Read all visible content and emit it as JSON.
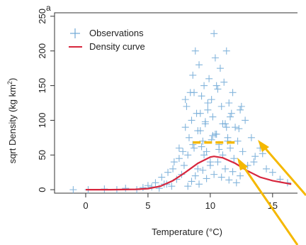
{
  "chart_data": {
    "type": "scatter",
    "panel_label": "a",
    "xlabel": "Temperature (°C)",
    "ylabel_main": "sqrt Density (kg km",
    "ylabel_sup": "2",
    "ylabel_close": ")",
    "xlim": [
      -2.5,
      17
    ],
    "ylim": [
      -5,
      255
    ],
    "xticks": [
      0,
      5,
      10,
      15
    ],
    "yticks": [
      0,
      50,
      100,
      150,
      200,
      250
    ],
    "legend": [
      {
        "label": "Observations",
        "marker": "plus",
        "color": "#6fa8d6"
      },
      {
        "label": "Density curve",
        "marker": "line",
        "color": "#d7263d"
      }
    ],
    "colors": {
      "observations": "#6fa8d6",
      "curve": "#d7263d",
      "annotation": "#f5b800"
    },
    "series": [
      {
        "name": "Density curve",
        "kind": "curve",
        "x": [
          0,
          2,
          4,
          5,
          6,
          7,
          8,
          9,
          10,
          10.3,
          11,
          12,
          13,
          14,
          15,
          16.5
        ],
        "y": [
          0,
          0,
          0.5,
          1.5,
          5,
          13,
          25,
          38,
          47,
          48,
          46,
          38,
          27,
          18,
          13,
          8
        ]
      },
      {
        "name": "Observations",
        "kind": "points",
        "x": [
          -1,
          0.2,
          1.5,
          2.5,
          3.2,
          4.1,
          4.6,
          5.0,
          5.3,
          5.6,
          5.9,
          6.1,
          6.3,
          6.6,
          6.9,
          7.1,
          7.3,
          7.5,
          7.7,
          7.9,
          8.0,
          8.1,
          8.2,
          8.3,
          8.4,
          8.5,
          8.6,
          8.7,
          8.8,
          8.9,
          9.0,
          9.1,
          9.2,
          9.3,
          9.4,
          9.5,
          9.6,
          9.7,
          9.8,
          9.9,
          10.0,
          10.1,
          10.2,
          10.3,
          10.4,
          10.5,
          10.6,
          10.7,
          10.8,
          10.9,
          11.0,
          11.1,
          11.2,
          11.3,
          11.4,
          11.5,
          11.6,
          11.7,
          11.8,
          11.9,
          12.0,
          12.2,
          12.4,
          12.6,
          12.8,
          13.0,
          13.3,
          13.6,
          14.0,
          14.5,
          15.0,
          15.6,
          16.2,
          8.2,
          8.5,
          8.8,
          9.1,
          9.4,
          9.7,
          10.0,
          10.3,
          10.6,
          10.9,
          11.2,
          11.5,
          11.8,
          12.1,
          12.4,
          8.6,
          9.0,
          9.5,
          10.1,
          10.7,
          11.3,
          9.2,
          9.8,
          10.4,
          11.0,
          7.5,
          8.0,
          9.3,
          10.2,
          11.6,
          12.3,
          7.8,
          8.7,
          9.6,
          10.5,
          11.4,
          12.5,
          6.5,
          7.0,
          13.5,
          14.2
        ],
        "y": [
          0,
          0,
          1,
          0,
          2,
          0,
          3,
          6,
          4,
          10,
          2,
          18,
          8,
          25,
          5,
          40,
          15,
          60,
          22,
          35,
          90,
          120,
          50,
          75,
          140,
          100,
          165,
          60,
          200,
          110,
          30,
          180,
          85,
          135,
          70,
          150,
          95,
          55,
          115,
          160,
          40,
          130,
          105,
          225,
          190,
          80,
          145,
          65,
          175,
          120,
          50,
          155,
          95,
          200,
          75,
          125,
          60,
          110,
          140,
          45,
          90,
          70,
          115,
          55,
          100,
          35,
          75,
          48,
          60,
          30,
          25,
          15,
          10,
          5,
          12,
          20,
          8,
          28,
          16,
          35,
          22,
          40,
          18,
          30,
          14,
          26,
          10,
          20,
          65,
          85,
          50,
          72,
          58,
          90,
          110,
          125,
          80,
          95,
          45,
          130,
          62,
          78,
          105,
          88,
          55,
          140,
          98,
          150,
          70,
          120,
          8,
          30,
          40,
          52
        ]
      }
    ],
    "annotation_dash": {
      "x": [
        8.6,
        12.0
      ],
      "y": 68
    }
  }
}
